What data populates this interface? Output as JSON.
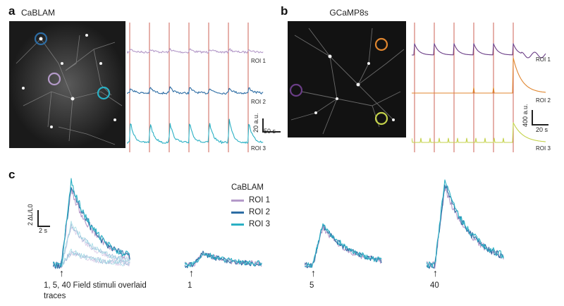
{
  "panel_a": {
    "letter": "a",
    "title": "CaBLAM",
    "roi_labels": [
      "ROI 1",
      "ROI 2",
      "ROI 3"
    ],
    "scale_y": "20 a.u.",
    "scale_x": "50 s",
    "roi_colors": [
      "#b49ac9",
      "#2d6da4",
      "#2ab0c4"
    ]
  },
  "panel_b": {
    "letter": "b",
    "title": "GCaMP8s",
    "roi_labels": [
      "ROI 1",
      "ROI 2",
      "ROI 3"
    ],
    "scale_y": "400 a.u.",
    "scale_x": "20 s",
    "roi_colors": [
      "#6a3d86",
      "#e0862f",
      "#c4d24a"
    ]
  },
  "panel_c": {
    "letter": "c",
    "scale_y": "2 ΔL/L0",
    "scale_x": "2 s",
    "legend": {
      "title": "CaBLAM",
      "items": [
        {
          "label": "ROI 1",
          "color": "#b49ac9"
        },
        {
          "label": "ROI 2",
          "color": "#2d6da4"
        },
        {
          "label": "ROI 3",
          "color": "#2ab0c4"
        }
      ]
    },
    "stimuli": [
      {
        "label": "1, 5, 40 Field stimuli overlaid traces"
      },
      {
        "label": "1"
      },
      {
        "label": "5"
      },
      {
        "label": "40"
      }
    ],
    "arrow_glyph": "↑"
  }
}
